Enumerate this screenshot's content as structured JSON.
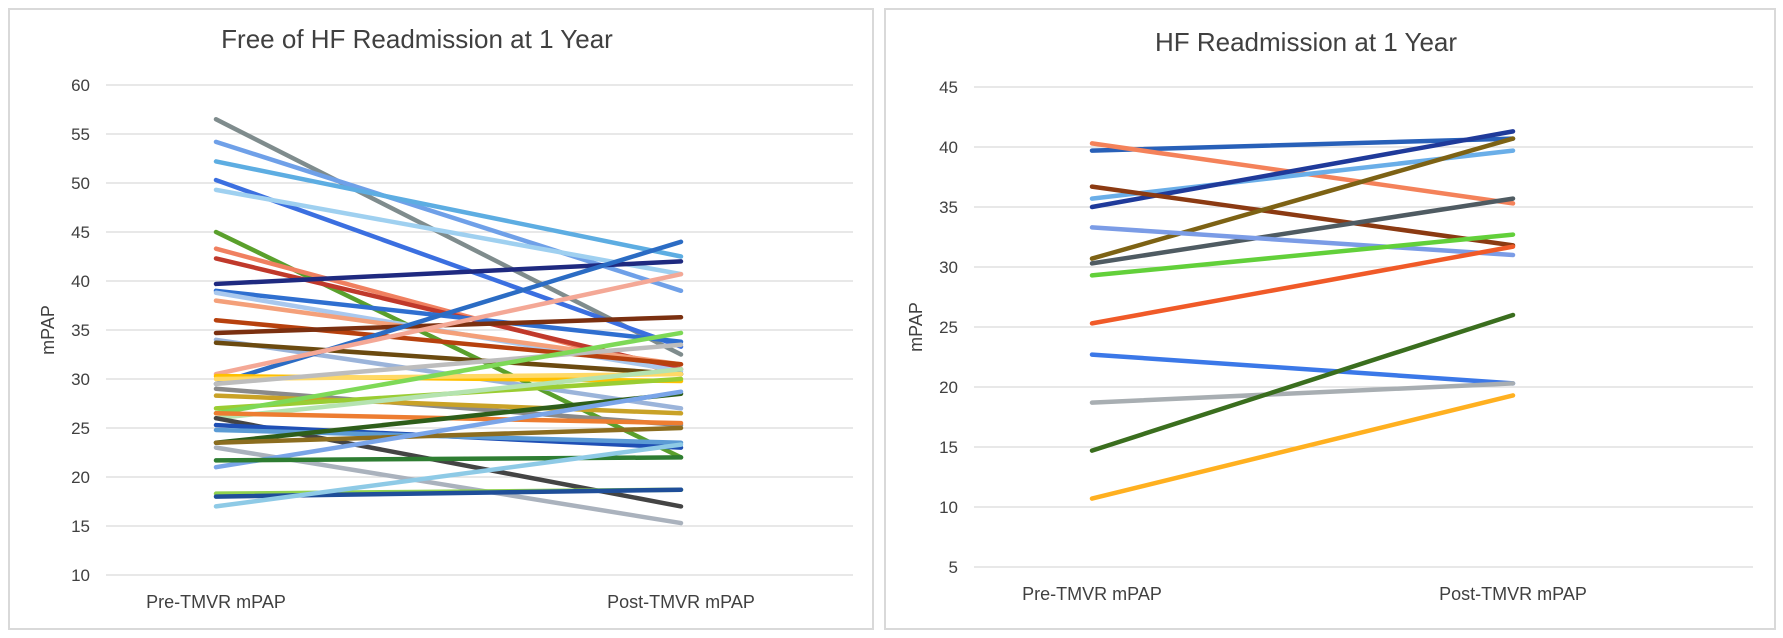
{
  "chart_data": [
    {
      "type": "line",
      "title": "Free of HF Readmission at 1 Year",
      "xlabel": "",
      "ylabel": "mPAP",
      "categories": [
        "Pre-TMVR mPAP",
        "Post-TMVR mPAP"
      ],
      "ylim": [
        10,
        60
      ],
      "yticks": [
        10,
        15,
        20,
        25,
        30,
        35,
        40,
        45,
        50,
        55,
        60
      ],
      "grid": true,
      "series": [
        {
          "color": "#7f8c8d",
          "values": [
            56.5,
            32.5
          ]
        },
        {
          "color": "#6fa0e8",
          "values": [
            54.2,
            39.0
          ]
        },
        {
          "color": "#5dade2",
          "values": [
            52.2,
            42.5
          ]
        },
        {
          "color": "#3b6fe0",
          "values": [
            50.3,
            33.3
          ]
        },
        {
          "color": "#9fd0f0",
          "values": [
            49.3,
            40.7
          ]
        },
        {
          "color": "#5aa02c",
          "values": [
            45.0,
            22.0
          ]
        },
        {
          "color": "#f08060",
          "values": [
            43.3,
            30.5
          ]
        },
        {
          "color": "#c0392b",
          "values": [
            42.3,
            31.0
          ]
        },
        {
          "color": "#1f2a80",
          "values": [
            39.7,
            42.0
          ]
        },
        {
          "color": "#2f6fd0",
          "values": [
            39.0,
            33.8
          ]
        },
        {
          "color": "#a9c8ee",
          "values": [
            38.8,
            30.8
          ]
        },
        {
          "color": "#f4a07a",
          "values": [
            38.0,
            31.5
          ]
        },
        {
          "color": "#b7410e",
          "values": [
            36.0,
            31.5
          ]
        },
        {
          "color": "#7b3010",
          "values": [
            34.7,
            36.3
          ]
        },
        {
          "color": "#9bb4da",
          "values": [
            34.0,
            27.0
          ]
        },
        {
          "color": "#6b4a10",
          "values": [
            33.7,
            30.5
          ]
        },
        {
          "color": "#2b6cc4",
          "values": [
            29.5,
            44.0
          ]
        },
        {
          "color": "#f4a896",
          "values": [
            30.5,
            40.7
          ]
        },
        {
          "color": "#ffc000",
          "values": [
            30.3,
            29.8
          ]
        },
        {
          "color": "#ffd966",
          "values": [
            30.0,
            30.5
          ]
        },
        {
          "color": "#bdbdbd",
          "values": [
            29.5,
            33.5
          ]
        },
        {
          "color": "#8a8a8a",
          "values": [
            29.0,
            25.3
          ]
        },
        {
          "color": "#c9a227",
          "values": [
            28.3,
            26.5
          ]
        },
        {
          "color": "#9acd32",
          "values": [
            27.0,
            30.0
          ]
        },
        {
          "color": "#7ed957",
          "values": [
            26.5,
            34.7
          ]
        },
        {
          "color": "#b5e3b0",
          "values": [
            26.0,
            31.0
          ]
        },
        {
          "color": "#ed7d31",
          "values": [
            26.5,
            25.5
          ]
        },
        {
          "color": "#444444",
          "values": [
            26.0,
            17.0
          ]
        },
        {
          "color": "#1f4fb5",
          "values": [
            25.3,
            23.0
          ]
        },
        {
          "color": "#5b9bd5",
          "values": [
            24.8,
            23.5
          ]
        },
        {
          "color": "#2e5e1a",
          "values": [
            23.5,
            28.5
          ]
        },
        {
          "color": "#8c6d1f",
          "values": [
            23.5,
            25.0
          ]
        },
        {
          "color": "#aab2bd",
          "values": [
            23.0,
            15.3
          ]
        },
        {
          "color": "#7aa5e8",
          "values": [
            21.0,
            28.7
          ]
        },
        {
          "color": "#2e7d32",
          "values": [
            21.7,
            22.0
          ]
        },
        {
          "color": "#8fd14f",
          "values": [
            18.3,
            18.7
          ]
        },
        {
          "color": "#1f4e99",
          "values": [
            18.0,
            18.7
          ]
        },
        {
          "color": "#8ecae6",
          "values": [
            17.0,
            23.3
          ]
        }
      ]
    },
    {
      "type": "line",
      "title": "HF Readmission at 1 Year",
      "xlabel": "",
      "ylabel": "mPAP",
      "categories": [
        "Pre-TMVR mPAP",
        "Post-TMVR mPAP"
      ],
      "ylim": [
        5,
        45
      ],
      "yticks": [
        5,
        10,
        15,
        20,
        25,
        30,
        35,
        40,
        45
      ],
      "grid": true,
      "series": [
        {
          "color": "#2860b8",
          "values": [
            39.7,
            40.7
          ]
        },
        {
          "color": "#f4825a",
          "values": [
            40.3,
            35.3
          ]
        },
        {
          "color": "#6aaee8",
          "values": [
            35.7,
            39.7
          ]
        },
        {
          "color": "#1f3a9a",
          "values": [
            35.0,
            41.3
          ]
        },
        {
          "color": "#8b3a12",
          "values": [
            36.7,
            31.8
          ]
        },
        {
          "color": "#7d6214",
          "values": [
            30.7,
            40.7
          ]
        },
        {
          "color": "#4f5b62",
          "values": [
            30.3,
            35.7
          ]
        },
        {
          "color": "#7b9ce6",
          "values": [
            33.3,
            31.0
          ]
        },
        {
          "color": "#62d03a",
          "values": [
            29.3,
            32.7
          ]
        },
        {
          "color": "#f05a28",
          "values": [
            25.3,
            31.7
          ]
        },
        {
          "color": "#3b78e8",
          "values": [
            22.7,
            20.3
          ]
        },
        {
          "color": "#a8aeb2",
          "values": [
            18.7,
            20.3
          ]
        },
        {
          "color": "#3a6e1e",
          "values": [
            14.7,
            26.0
          ]
        },
        {
          "color": "#ffb020",
          "values": [
            10.7,
            19.3
          ]
        }
      ]
    }
  ]
}
